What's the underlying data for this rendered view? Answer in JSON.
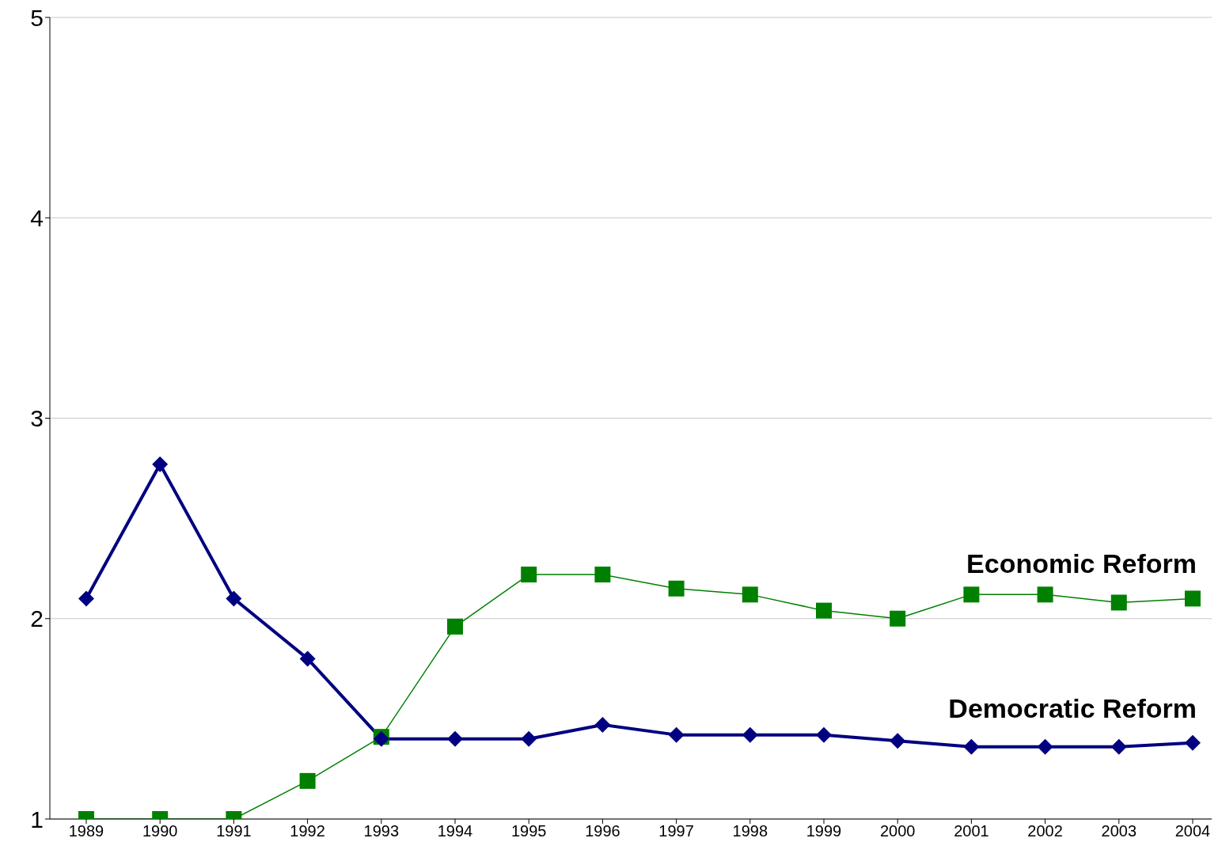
{
  "chart_data": {
    "type": "line",
    "categories": [
      "1989",
      "1990",
      "1991",
      "1992",
      "1993",
      "1994",
      "1995",
      "1996",
      "1997",
      "1998",
      "1999",
      "2000",
      "2001",
      "2002",
      "2003",
      "2004"
    ],
    "series": [
      {
        "name": "Democratic Reform",
        "color": "#000080",
        "marker": "diamond",
        "values": [
          2.1,
          2.77,
          2.1,
          1.8,
          1.4,
          1.4,
          1.4,
          1.47,
          1.42,
          1.42,
          1.42,
          1.39,
          1.36,
          1.36,
          1.36,
          1.38
        ]
      },
      {
        "name": "Economic Reform",
        "color": "#008000",
        "marker": "square",
        "values": [
          1,
          1,
          1,
          1.19,
          1.41,
          1.96,
          2.22,
          2.22,
          2.15,
          2.12,
          2.04,
          2,
          2.12,
          2.12,
          2.08,
          2.1
        ]
      }
    ],
    "ylim": [
      1,
      5
    ],
    "yticks": [
      1,
      2,
      3,
      4,
      5
    ],
    "grid": "y",
    "legend": false
  }
}
